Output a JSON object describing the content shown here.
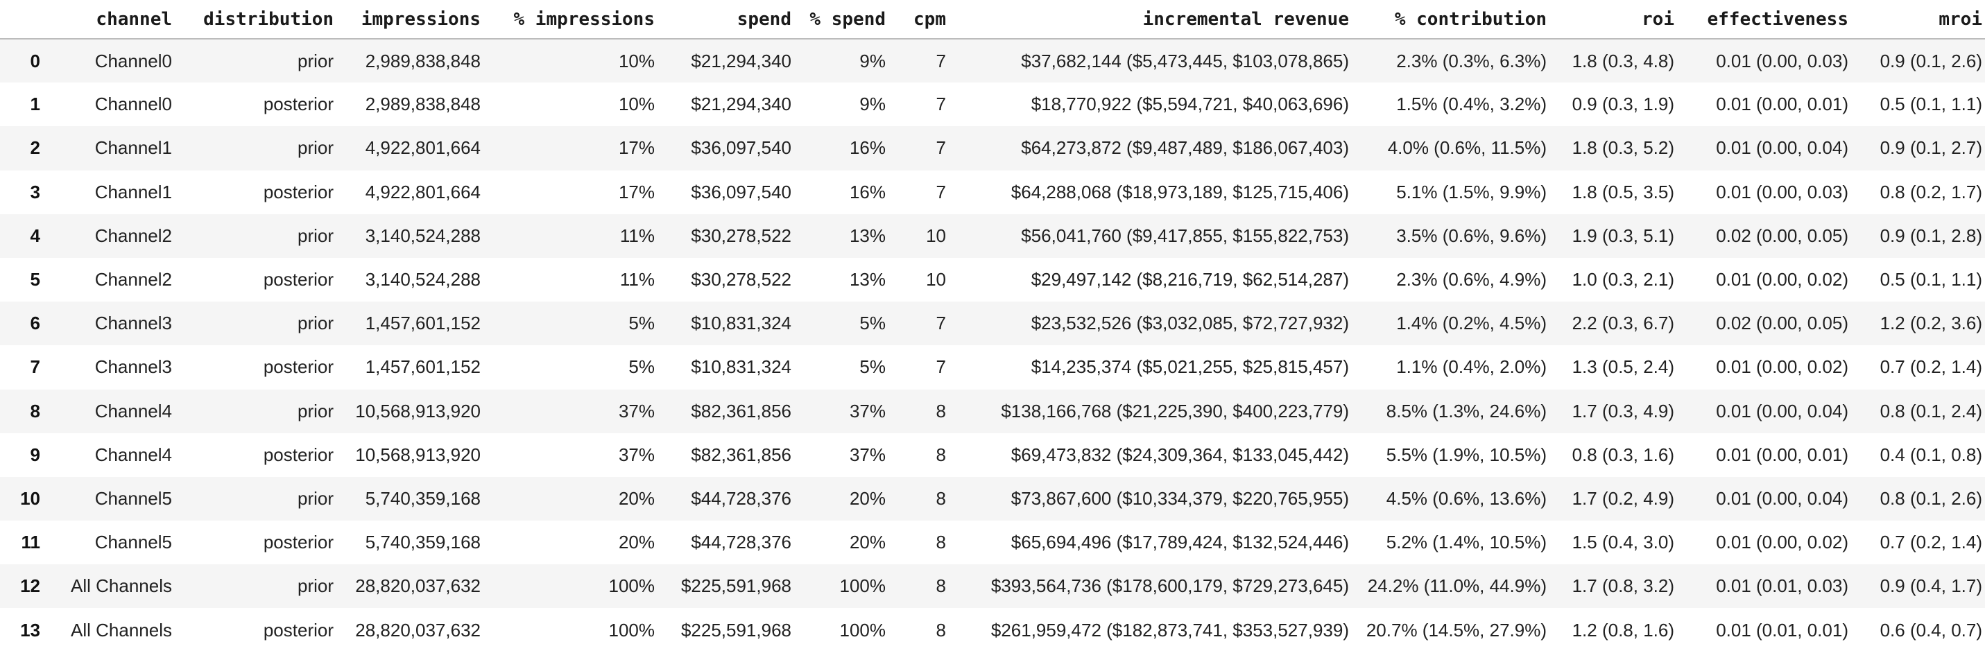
{
  "table": {
    "column_labels": [
      "",
      "channel",
      "distribution",
      "impressions",
      "% impressions",
      "spend",
      "% spend",
      "cpm",
      "incremental revenue",
      "% contribution",
      "roi",
      "effectiveness",
      "mroi"
    ],
    "column_keys": [
      "index",
      "channel",
      "distribution",
      "impressions",
      "pct-impressions",
      "spend",
      "pct-spend",
      "cpm",
      "incremental-revenue",
      "pct-contribution",
      "roi",
      "effectiveness",
      "mroi"
    ],
    "rows": [
      [
        "0",
        "Channel0",
        "prior",
        "2,989,838,848",
        "10%",
        "$21,294,340",
        "9%",
        "7",
        "$37,682,144 ($5,473,445, $103,078,865)",
        "2.3% (0.3%, 6.3%)",
        "1.8 (0.3, 4.8)",
        "0.01 (0.00, 0.03)",
        "0.9 (0.1, 2.6)"
      ],
      [
        "1",
        "Channel0",
        "posterior",
        "2,989,838,848",
        "10%",
        "$21,294,340",
        "9%",
        "7",
        "$18,770,922 ($5,594,721, $40,063,696)",
        "1.5% (0.4%, 3.2%)",
        "0.9 (0.3, 1.9)",
        "0.01 (0.00, 0.01)",
        "0.5 (0.1, 1.1)"
      ],
      [
        "2",
        "Channel1",
        "prior",
        "4,922,801,664",
        "17%",
        "$36,097,540",
        "16%",
        "7",
        "$64,273,872 ($9,487,489, $186,067,403)",
        "4.0% (0.6%, 11.5%)",
        "1.8 (0.3, 5.2)",
        "0.01 (0.00, 0.04)",
        "0.9 (0.1, 2.7)"
      ],
      [
        "3",
        "Channel1",
        "posterior",
        "4,922,801,664",
        "17%",
        "$36,097,540",
        "16%",
        "7",
        "$64,288,068 ($18,973,189, $125,715,406)",
        "5.1% (1.5%, 9.9%)",
        "1.8 (0.5, 3.5)",
        "0.01 (0.00, 0.03)",
        "0.8 (0.2, 1.7)"
      ],
      [
        "4",
        "Channel2",
        "prior",
        "3,140,524,288",
        "11%",
        "$30,278,522",
        "13%",
        "10",
        "$56,041,760 ($9,417,855, $155,822,753)",
        "3.5% (0.6%, 9.6%)",
        "1.9 (0.3, 5.1)",
        "0.02 (0.00, 0.05)",
        "0.9 (0.1, 2.8)"
      ],
      [
        "5",
        "Channel2",
        "posterior",
        "3,140,524,288",
        "11%",
        "$30,278,522",
        "13%",
        "10",
        "$29,497,142 ($8,216,719, $62,514,287)",
        "2.3% (0.6%, 4.9%)",
        "1.0 (0.3, 2.1)",
        "0.01 (0.00, 0.02)",
        "0.5 (0.1, 1.1)"
      ],
      [
        "6",
        "Channel3",
        "prior",
        "1,457,601,152",
        "5%",
        "$10,831,324",
        "5%",
        "7",
        "$23,532,526 ($3,032,085, $72,727,932)",
        "1.4% (0.2%, 4.5%)",
        "2.2 (0.3, 6.7)",
        "0.02 (0.00, 0.05)",
        "1.2 (0.2, 3.6)"
      ],
      [
        "7",
        "Channel3",
        "posterior",
        "1,457,601,152",
        "5%",
        "$10,831,324",
        "5%",
        "7",
        "$14,235,374 ($5,021,255, $25,815,457)",
        "1.1% (0.4%, 2.0%)",
        "1.3 (0.5, 2.4)",
        "0.01 (0.00, 0.02)",
        "0.7 (0.2, 1.4)"
      ],
      [
        "8",
        "Channel4",
        "prior",
        "10,568,913,920",
        "37%",
        "$82,361,856",
        "37%",
        "8",
        "$138,166,768 ($21,225,390, $400,223,779)",
        "8.5% (1.3%, 24.6%)",
        "1.7 (0.3, 4.9)",
        "0.01 (0.00, 0.04)",
        "0.8 (0.1, 2.4)"
      ],
      [
        "9",
        "Channel4",
        "posterior",
        "10,568,913,920",
        "37%",
        "$82,361,856",
        "37%",
        "8",
        "$69,473,832 ($24,309,364, $133,045,442)",
        "5.5% (1.9%, 10.5%)",
        "0.8 (0.3, 1.6)",
        "0.01 (0.00, 0.01)",
        "0.4 (0.1, 0.8)"
      ],
      [
        "10",
        "Channel5",
        "prior",
        "5,740,359,168",
        "20%",
        "$44,728,376",
        "20%",
        "8",
        "$73,867,600 ($10,334,379, $220,765,955)",
        "4.5% (0.6%, 13.6%)",
        "1.7 (0.2, 4.9)",
        "0.01 (0.00, 0.04)",
        "0.8 (0.1, 2.6)"
      ],
      [
        "11",
        "Channel5",
        "posterior",
        "5,740,359,168",
        "20%",
        "$44,728,376",
        "20%",
        "8",
        "$65,694,496 ($17,789,424, $132,524,446)",
        "5.2% (1.4%, 10.5%)",
        "1.5 (0.4, 3.0)",
        "0.01 (0.00, 0.02)",
        "0.7 (0.2, 1.4)"
      ],
      [
        "12",
        "All Channels",
        "prior",
        "28,820,037,632",
        "100%",
        "$225,591,968",
        "100%",
        "8",
        "$393,564,736 ($178,600,179, $729,273,645)",
        "24.2% (11.0%, 44.9%)",
        "1.7 (0.8, 3.2)",
        "0.01 (0.01, 0.03)",
        "0.9 (0.4, 1.7)"
      ],
      [
        "13",
        "All Channels",
        "posterior",
        "28,820,037,632",
        "100%",
        "$225,591,968",
        "100%",
        "8",
        "$261,959,472 ($182,873,741, $353,527,939)",
        "20.7% (14.5%, 27.9%)",
        "1.2 (0.8, 1.6)",
        "0.01 (0.01, 0.01)",
        "0.6 (0.4, 0.7)"
      ]
    ]
  },
  "colors": {
    "background": "#ffffff",
    "row_stripe": "#f5f5f5",
    "header_rule": "#bcbcbc",
    "body_text": "#212121",
    "header_text": "#1a1a1a"
  }
}
